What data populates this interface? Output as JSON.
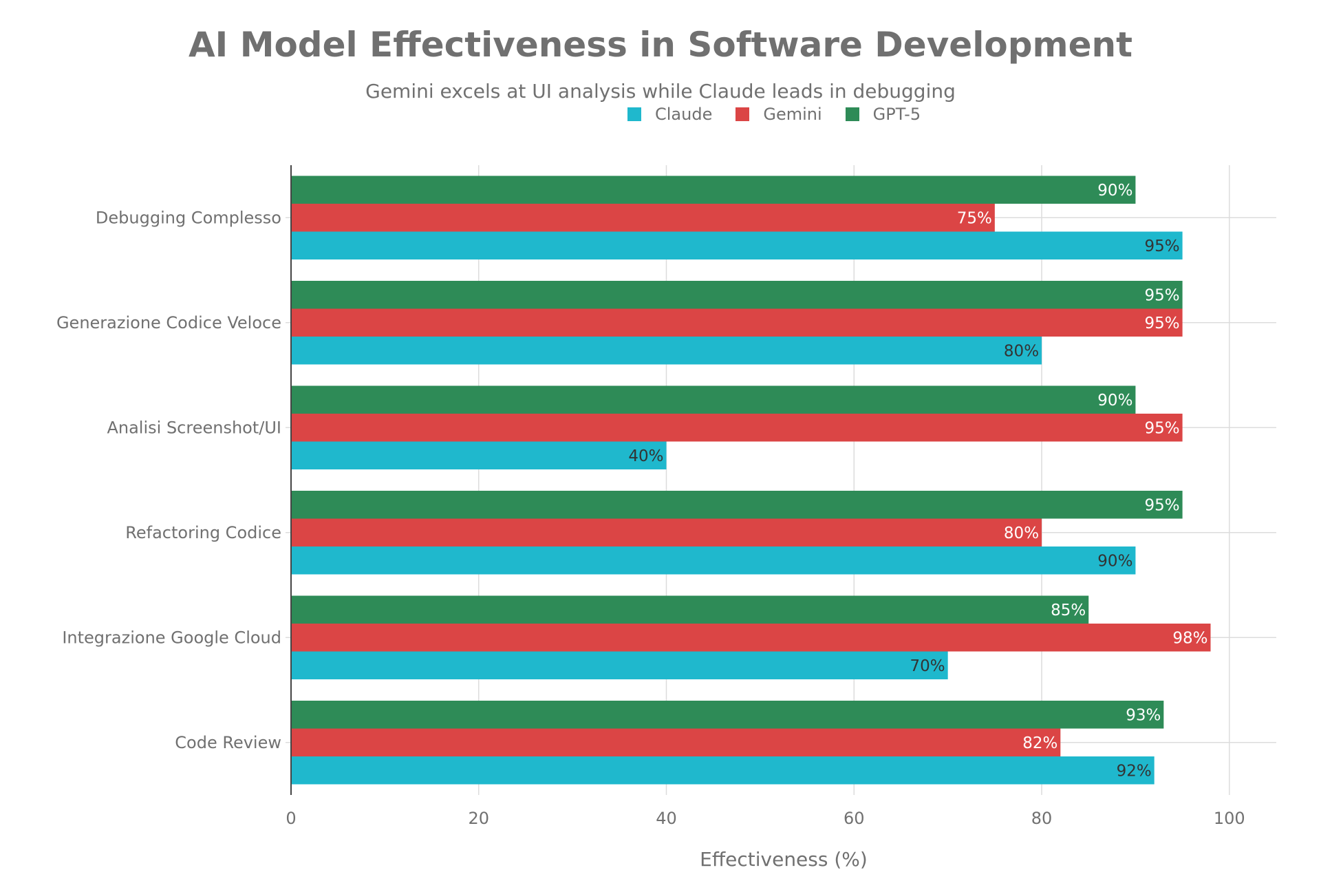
{
  "chart_data": {
    "type": "bar",
    "orientation": "horizontal",
    "title": "AI Model Effectiveness in Software Development",
    "subtitle": "Gemini excels at UI analysis while Claude leads in debugging",
    "xlabel": "Effectiveness (%)",
    "ylabel": "",
    "xlim": [
      0,
      105
    ],
    "xticks": [
      0,
      20,
      40,
      60,
      80,
      100
    ],
    "grid": true,
    "legend_position": "top-center",
    "categories": [
      "Debugging Complesso",
      "Generazione Codice Veloce",
      "Analisi Screenshot/UI",
      "Refactoring Codice",
      "Integrazione Google Cloud",
      "Code Review"
    ],
    "series": [
      {
        "name": "Claude",
        "color": "#1FB8CD",
        "label_color": "#333333",
        "values": [
          95,
          80,
          40,
          90,
          70,
          92
        ]
      },
      {
        "name": "Gemini",
        "color": "#DB4545",
        "label_color": "#ffffff",
        "values": [
          75,
          95,
          95,
          80,
          98,
          82
        ]
      },
      {
        "name": "GPT-5",
        "color": "#2E8B57",
        "label_color": "#ffffff",
        "values": [
          90,
          95,
          90,
          95,
          85,
          93
        ]
      }
    ],
    "value_suffix": "%"
  }
}
